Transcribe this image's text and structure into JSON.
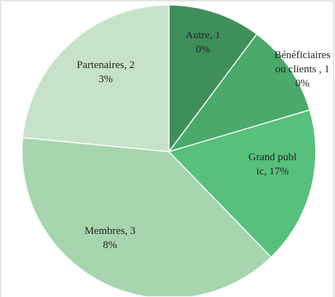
{
  "chart_data": {
    "type": "pie",
    "labels": [
      "Autre, 10%",
      "Bénéficiaires ou clients , 10%",
      "Grand public, 17%",
      "Membres, 38%",
      "Partenaires, 23%"
    ],
    "values": [
      10,
      10,
      17,
      38,
      23
    ],
    "colors": [
      "#3f8f5b",
      "#4aa96b",
      "#57c07c",
      "#a6d5ae",
      "#c6e3c9"
    ]
  }
}
